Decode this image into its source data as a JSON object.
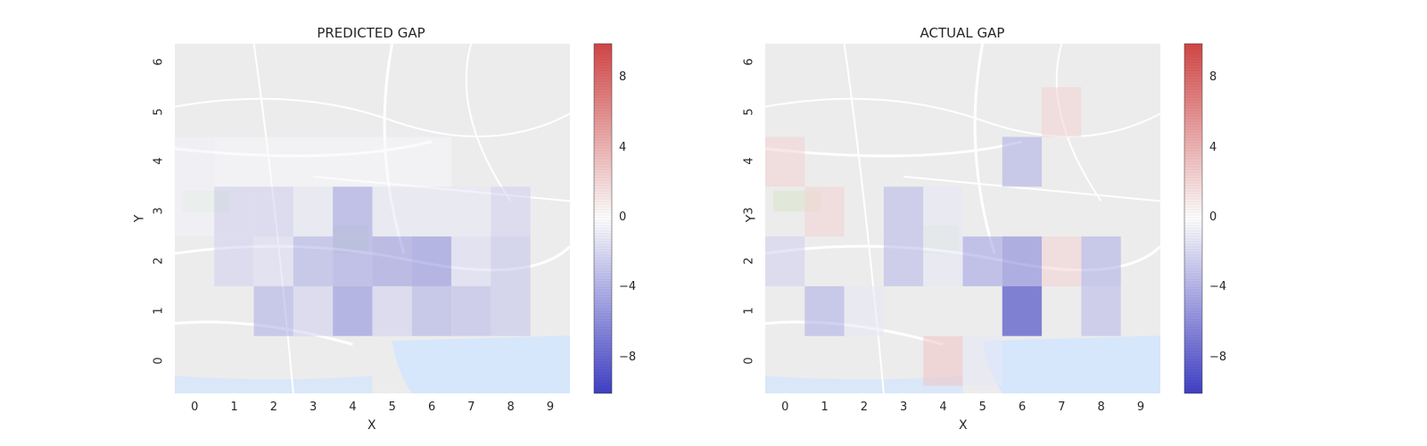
{
  "colormap": {
    "low": "#1010b8",
    "mid": "#ffffff",
    "high": "#c81818",
    "vmin": -10,
    "vmax": 10
  },
  "map_colors": {
    "land": "#ececec",
    "water": "#d6e6fb",
    "road": "#ffffff",
    "park": "#dde7d2"
  },
  "chart_data": [
    {
      "type": "heatmap",
      "title": "PREDICTED GAP",
      "xlabel": "X",
      "ylabel": "Y",
      "x_ticks": [
        "0",
        "1",
        "2",
        "3",
        "4",
        "5",
        "6",
        "7",
        "8",
        "9"
      ],
      "y_ticks": [
        "0",
        "1",
        "2",
        "3",
        "4",
        "5",
        "6"
      ],
      "colorbar_ticks": [
        "8",
        "4",
        "0",
        "−4",
        "−8"
      ],
      "colorbar_values": [
        8,
        4,
        0,
        -4,
        -8
      ],
      "cells": [
        {
          "x": 0,
          "y": 4,
          "value": -0.5
        },
        {
          "x": 1,
          "y": 4,
          "value": -0.3
        },
        {
          "x": 2,
          "y": 4,
          "value": -0.3
        },
        {
          "x": 3,
          "y": 4,
          "value": -0.3
        },
        {
          "x": 4,
          "y": 4,
          "value": -0.3
        },
        {
          "x": 5,
          "y": 4,
          "value": -0.3
        },
        {
          "x": 6,
          "y": 4,
          "value": -0.3
        },
        {
          "x": 0,
          "y": 3,
          "value": -0.5
        },
        {
          "x": 1,
          "y": 3,
          "value": -2.0
        },
        {
          "x": 2,
          "y": 3,
          "value": -2.0
        },
        {
          "x": 3,
          "y": 3,
          "value": -1.0
        },
        {
          "x": 4,
          "y": 3,
          "value": -4.0
        },
        {
          "x": 5,
          "y": 3,
          "value": -1.0
        },
        {
          "x": 6,
          "y": 3,
          "value": -1.0
        },
        {
          "x": 7,
          "y": 3,
          "value": -1.0
        },
        {
          "x": 8,
          "y": 3,
          "value": -2.0
        },
        {
          "x": 1,
          "y": 2,
          "value": -2.0
        },
        {
          "x": 2,
          "y": 2,
          "value": -1.5
        },
        {
          "x": 3,
          "y": 2,
          "value": -3.5
        },
        {
          "x": 4,
          "y": 2,
          "value": -4.0
        },
        {
          "x": 5,
          "y": 2,
          "value": -4.5
        },
        {
          "x": 6,
          "y": 2,
          "value": -5.0
        },
        {
          "x": 7,
          "y": 2,
          "value": -1.5
        },
        {
          "x": 8,
          "y": 2,
          "value": -2.5
        },
        {
          "x": 2,
          "y": 1,
          "value": -3.5
        },
        {
          "x": 3,
          "y": 1,
          "value": -2.0
        },
        {
          "x": 4,
          "y": 1,
          "value": -5.0
        },
        {
          "x": 5,
          "y": 1,
          "value": -2.0
        },
        {
          "x": 6,
          "y": 1,
          "value": -3.5
        },
        {
          "x": 7,
          "y": 1,
          "value": -3.0
        },
        {
          "x": 8,
          "y": 1,
          "value": -2.5
        }
      ]
    },
    {
      "type": "heatmap",
      "title": "ACTUAL GAP",
      "xlabel": "X",
      "ylabel": "Y",
      "x_ticks": [
        "0",
        "1",
        "2",
        "3",
        "4",
        "5",
        "6",
        "7",
        "8",
        "9"
      ],
      "y_ticks": [
        "0",
        "1",
        "2",
        "3",
        "4",
        "5",
        "6"
      ],
      "colorbar_ticks": [
        "8",
        "4",
        "0",
        "−4",
        "−8"
      ],
      "colorbar_values": [
        8,
        4,
        0,
        -4,
        -8
      ],
      "cells": [
        {
          "x": 7,
          "y": 5,
          "value": 2.0
        },
        {
          "x": 0,
          "y": 4,
          "value": 2.0
        },
        {
          "x": 6,
          "y": 4,
          "value": -3.5
        },
        {
          "x": 1,
          "y": 3,
          "value": 2.0
        },
        {
          "x": 3,
          "y": 3,
          "value": -3.0
        },
        {
          "x": 4,
          "y": 3,
          "value": -1.0
        },
        {
          "x": 0,
          "y": 2,
          "value": -2.0
        },
        {
          "x": 3,
          "y": 2,
          "value": -3.0
        },
        {
          "x": 4,
          "y": 2,
          "value": -1.0
        },
        {
          "x": 5,
          "y": 2,
          "value": -4.0
        },
        {
          "x": 6,
          "y": 2,
          "value": -5.5
        },
        {
          "x": 7,
          "y": 2,
          "value": 2.0
        },
        {
          "x": 8,
          "y": 2,
          "value": -3.5
        },
        {
          "x": 1,
          "y": 1,
          "value": -3.5
        },
        {
          "x": 2,
          "y": 1,
          "value": -1.0
        },
        {
          "x": 6,
          "y": 1,
          "value": -9.0
        },
        {
          "x": 8,
          "y": 1,
          "value": -3.0
        },
        {
          "x": 4,
          "y": 0,
          "value": 2.5
        },
        {
          "x": 5,
          "y": 0,
          "value": -1.0
        }
      ]
    }
  ]
}
